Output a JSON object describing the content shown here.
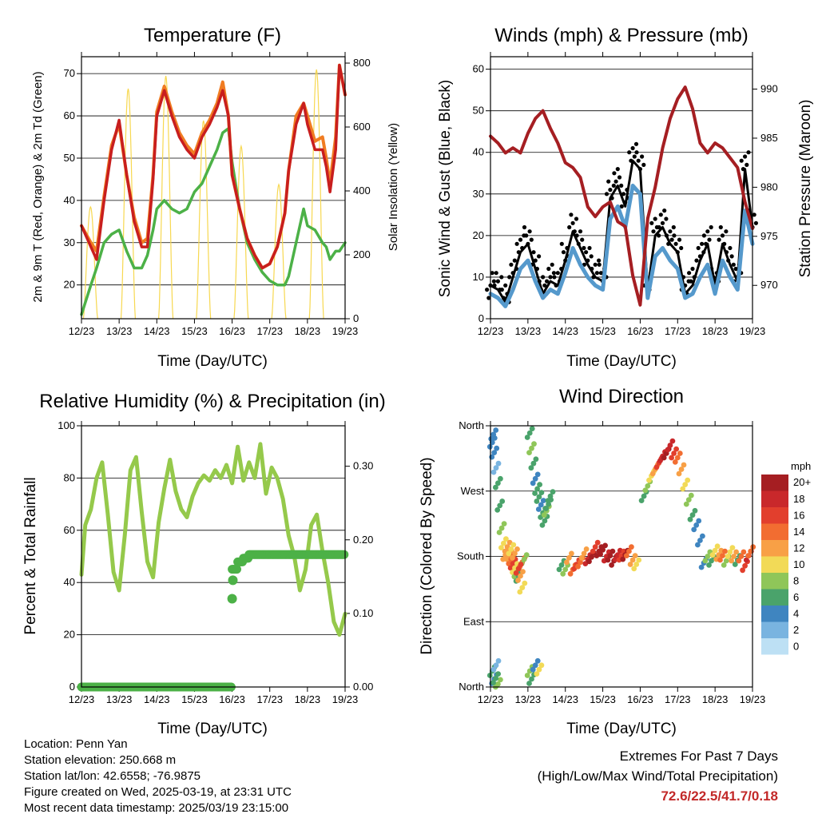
{
  "x_ticks": [
    "12/23",
    "13/23",
    "14/23",
    "15/23",
    "16/23",
    "17/23",
    "18/23",
    "19/23"
  ],
  "x_label": "Time (Day/UTC)",
  "colors": {
    "temp2m": "#c81e1e",
    "temp9m": "#f07c22",
    "dewpoint": "#4cb147",
    "solar": "#f7d850",
    "wind": "#5599cc",
    "gust": "#000000",
    "pressure": "#a51e22",
    "rh": "#95c94b",
    "precip": "#4cb147",
    "extremes": "#c22828"
  },
  "info": {
    "location": "Location: Penn Yan",
    "elevation": "Station elevation: 250.668 m",
    "latlon": "Station lat/lon: 42.6558; -76.9875",
    "created": "Figure created on Wed, 2025-03-19, at 23:31 UTC",
    "recent": "Most recent data timestamp: 2025/03/19 23:15:00"
  },
  "extremes": {
    "line1": "Extremes For Past 7 Days",
    "line2": "(High/Low/Max Wind/Total Precipitation)",
    "values": "72.6/22.5/41.7/0.18"
  },
  "chart_data": [
    {
      "id": "temp",
      "type": "line",
      "title": "Temperature (F)",
      "xlabel": "Time (Day/UTC)",
      "ylabel": "2m & 9m T (Red, Orange) & 2m Td (Green)",
      "ylabel_right": "Solar Insolation (Yellow)",
      "x_range": [
        0,
        7
      ],
      "ylim": [
        12,
        74
      ],
      "yticks": [
        20,
        30,
        40,
        50,
        60,
        70
      ],
      "ylim_right": [
        0,
        820
      ],
      "yticks_right": [
        0,
        200,
        400,
        600,
        800
      ],
      "x": [
        0,
        0.25,
        0.4,
        0.6,
        0.8,
        1,
        1.2,
        1.4,
        1.6,
        1.75,
        1.9,
        2,
        2.2,
        2.4,
        2.6,
        2.8,
        3,
        3.2,
        3.4,
        3.6,
        3.75,
        3.9,
        4,
        4.2,
        4.4,
        4.6,
        4.8,
        5,
        5.2,
        5.4,
        5.5,
        5.7,
        5.9,
        6,
        6.2,
        6.4,
        6.5,
        6.6,
        6.75,
        6.85,
        7
      ],
      "series": [
        {
          "name": "2m T",
          "values": [
            34,
            29,
            26,
            40,
            52,
            59,
            46,
            35,
            29,
            29,
            45,
            60,
            66,
            60,
            55,
            52,
            50,
            55,
            58,
            62,
            66,
            60,
            46,
            38,
            31,
            27,
            24,
            25,
            29,
            37,
            47,
            58,
            63,
            58,
            52,
            52,
            48,
            42,
            52,
            72,
            65
          ]
        },
        {
          "name": "9m T",
          "values": [
            34,
            30,
            28,
            41,
            53,
            58,
            46,
            36,
            30,
            31,
            46,
            61,
            67,
            61,
            56,
            53,
            51,
            56,
            59,
            63,
            68,
            60,
            46,
            38,
            31,
            27,
            24,
            25,
            29,
            37,
            47,
            60,
            63,
            60,
            54,
            55,
            50,
            44,
            55,
            72,
            65
          ]
        },
        {
          "name": "2m Td",
          "values": [
            13,
            20,
            24,
            30,
            32,
            33,
            28,
            24,
            24,
            27,
            33,
            38,
            40,
            38,
            37,
            38,
            42,
            44,
            48,
            52,
            56,
            57,
            49,
            38,
            30,
            26,
            23,
            21,
            20,
            20,
            22,
            30,
            38,
            34,
            33,
            30,
            29,
            26,
            28,
            28,
            30
          ]
        }
      ],
      "solar": {
        "days": [
          0.05,
          1.05,
          2.05,
          3.05,
          4.05,
          5.05,
          6.05
        ],
        "peaks": [
          350,
          720,
          760,
          620,
          540,
          420,
          780
        ]
      }
    },
    {
      "id": "wind",
      "type": "line",
      "title": "Winds (mph) & Pressure (mb)",
      "xlabel": "Time (Day/UTC)",
      "ylabel": "Sonic Wind & Gust (Blue, Black)",
      "ylabel_right": "Station Pressure (Maroon)",
      "x_range": [
        0,
        7
      ],
      "ylim": [
        0,
        63
      ],
      "yticks": [
        0,
        10,
        20,
        30,
        40,
        50,
        60
      ],
      "ylim_right": [
        966.6,
        993.3
      ],
      "yticks_right": [
        970,
        975,
        980,
        985,
        990
      ],
      "x": [
        0,
        0.2,
        0.4,
        0.6,
        0.8,
        1,
        1.2,
        1.4,
        1.6,
        1.8,
        2,
        2.2,
        2.4,
        2.6,
        2.8,
        3,
        3.2,
        3.4,
        3.6,
        3.8,
        4,
        4.2,
        4.4,
        4.6,
        4.8,
        5,
        5.2,
        5.4,
        5.6,
        5.8,
        6,
        6.2,
        6.4,
        6.6,
        6.8,
        7
      ],
      "series": [
        {
          "name": "Sonic Wind",
          "values": [
            6,
            5,
            3,
            7,
            12,
            14,
            9,
            5,
            7,
            6,
            11,
            17,
            13,
            10,
            8,
            7,
            24,
            27,
            22,
            32,
            30,
            5,
            15,
            17,
            14,
            12,
            5,
            6,
            10,
            13,
            6,
            14,
            10,
            7,
            26,
            18
          ]
        },
        {
          "name": "Gust",
          "values": [
            10,
            9,
            6,
            12,
            18,
            20,
            14,
            8,
            11,
            10,
            16,
            23,
            19,
            15,
            12,
            11,
            31,
            34,
            29,
            40,
            38,
            9,
            22,
            24,
            20,
            18,
            8,
            10,
            16,
            20,
            10,
            20,
            15,
            11,
            38,
            24
          ]
        },
        {
          "name": "Station Pressure",
          "values": [
            985.2,
            984.5,
            983.5,
            984,
            983.5,
            985.5,
            987,
            987.8,
            986,
            984.5,
            982.5,
            982,
            981,
            978,
            977,
            978,
            978.5,
            976.5,
            976,
            971,
            968,
            976.8,
            980,
            984,
            987,
            989,
            990.2,
            988,
            984.5,
            983.5,
            984.5,
            984,
            983,
            982,
            978.5,
            975.8
          ]
        }
      ]
    },
    {
      "id": "rh",
      "type": "line",
      "title": "Relative Humidity (%) & Precipitation (in)",
      "xlabel": "Time (Day/UTC)",
      "ylabel": "Percent & Total Rainfall",
      "x_range": [
        0,
        7
      ],
      "ylim": [
        0,
        100
      ],
      "yticks": [
        0,
        20,
        40,
        60,
        80,
        100
      ],
      "ylim_right": [
        0,
        0.355
      ],
      "yticks_right": [
        0,
        0.1,
        0.2,
        0.3
      ],
      "yticks_right_labels": [
        "0.00",
        "0.10",
        "0.20",
        "0.30"
      ],
      "x": [
        0,
        0.1,
        0.25,
        0.4,
        0.55,
        0.7,
        0.85,
        1,
        1.15,
        1.3,
        1.45,
        1.6,
        1.75,
        1.9,
        2.05,
        2.2,
        2.35,
        2.5,
        2.65,
        2.8,
        2.95,
        3.1,
        3.25,
        3.4,
        3.55,
        3.7,
        3.85,
        4,
        4.15,
        4.3,
        4.45,
        4.6,
        4.75,
        4.9,
        5.05,
        5.2,
        5.35,
        5.5,
        5.65,
        5.8,
        5.95,
        6.1,
        6.25,
        6.4,
        6.55,
        6.7,
        6.85,
        7
      ],
      "series": [
        {
          "name": "Relative Humidity",
          "values": [
            43,
            62,
            68,
            80,
            86,
            66,
            44,
            37,
            58,
            83,
            88,
            67,
            48,
            42,
            63,
            76,
            87,
            75,
            68,
            65,
            73,
            78,
            81,
            79,
            83,
            80,
            85,
            78,
            92,
            79,
            86,
            80,
            93,
            74,
            84,
            80,
            72,
            58,
            50,
            37,
            45,
            62,
            66,
            52,
            40,
            25,
            20,
            28
          ]
        },
        {
          "name": "Total Precipitation",
          "values": [
            0,
            0,
            0,
            0,
            0,
            0,
            0,
            0,
            0,
            0,
            0,
            0,
            0,
            0,
            0,
            0,
            0,
            0,
            0,
            0,
            0,
            0,
            0,
            0,
            0,
            0,
            0,
            0.16,
            0.17,
            0.175,
            0.18,
            0.18,
            0.18,
            0.18,
            0.18,
            0.18,
            0.18,
            0.18,
            0.18,
            0.18,
            0.18,
            0.18,
            0.18,
            0.18,
            0.18,
            0.18,
            0.18,
            0.18
          ]
        }
      ]
    },
    {
      "id": "wdir",
      "type": "scatter",
      "title": "Wind Direction",
      "xlabel": "Time (Day/UTC)",
      "ylabel": "Direction (Colored By Speed)",
      "x_range": [
        0,
        7
      ],
      "ylim": [
        0,
        360
      ],
      "yticks": [
        0,
        90,
        180,
        270,
        360
      ],
      "yticks_labels": [
        "North",
        "East",
        "South",
        "West",
        "North"
      ],
      "legend_title": "mph",
      "legend_labels": [
        "20+",
        "18",
        "16",
        "14",
        "12",
        "10",
        "8",
        "6",
        "4",
        "2",
        "0"
      ],
      "legend_colors": [
        "#a51e22",
        "#c9282b",
        "#e23f2d",
        "#f26d31",
        "#f8a046",
        "#f2da57",
        "#8fc659",
        "#4aa36b",
        "#3f85c0",
        "#79b4e0",
        "#bde0f4"
      ],
      "points": [
        {
          "t": [
            0.05,
            0.1,
            0.15,
            0.2,
            0.25,
            0.3,
            0.35,
            0.4,
            0.45,
            0.05,
            0.1,
            0.15,
            0.2,
            0.08,
            0.14
          ],
          "d": [
            340,
            320,
            300,
            280,
            250,
            220,
            200,
            185,
            190,
            20,
            10,
            30,
            5,
            350,
            15
          ],
          "s": [
            3,
            4,
            2,
            5,
            6,
            8,
            10,
            12,
            11,
            6,
            4,
            2,
            8,
            3,
            5
          ]
        },
        {
          "t": [
            0.5,
            0.55,
            0.6,
            0.65,
            0.7,
            0.75,
            0.8,
            0.85,
            0.9,
            0.55,
            0.65,
            0.75,
            0.85
          ],
          "d": [
            180,
            175,
            170,
            165,
            160,
            155,
            150,
            170,
            175,
            190,
            185,
            165,
            140
          ],
          "s": [
            12,
            14,
            16,
            10,
            8,
            6,
            12,
            14,
            8,
            10,
            12,
            15,
            9
          ]
        },
        {
          "t": [
            1.05,
            1.1,
            1.15,
            1.2,
            1.25,
            1.3,
            1.35,
            1.4,
            1.45,
            1.5,
            1.55,
            1.6,
            1.05,
            1.1,
            1.2,
            1.3
          ],
          "d": [
            350,
            330,
            310,
            290,
            270,
            260,
            250,
            240,
            230,
            245,
            255,
            260,
            20,
            10,
            30,
            25
          ],
          "s": [
            6,
            8,
            6,
            4,
            5,
            6,
            4,
            6,
            5,
            7,
            6,
            5,
            8,
            6,
            4,
            9
          ]
        },
        {
          "t": [
            1.9,
            2.0,
            2.1,
            2.2,
            2.3,
            2.4,
            2.5,
            2.6,
            2.7,
            2.8,
            2.9,
            3.0,
            3.1,
            3.2,
            3.3,
            3.4,
            3.5,
            3.6,
            3.7,
            3.8,
            3.9
          ],
          "d": [
            170,
            165,
            175,
            160,
            168,
            172,
            185,
            178,
            182,
            190,
            185,
            188,
            180,
            182,
            176,
            185,
            178,
            180,
            186,
            175,
            170
          ],
          "s": [
            6,
            8,
            12,
            14,
            16,
            14,
            12,
            18,
            20,
            16,
            22,
            20,
            18,
            22,
            20,
            18,
            16,
            20,
            14,
            12,
            10
          ]
        },
        {
          "t": [
            4.1,
            4.2,
            4.3,
            4.4,
            4.5,
            4.6,
            4.7,
            4.8,
            4.9,
            5.0,
            5.1,
            5.2,
            5.3,
            5.4,
            5.5,
            5.6
          ],
          "d": [
            260,
            275,
            290,
            300,
            310,
            320,
            325,
            330,
            320,
            315,
            300,
            280,
            260,
            240,
            220,
            200
          ],
          "s": [
            6,
            8,
            10,
            12,
            16,
            18,
            20,
            18,
            16,
            14,
            12,
            10,
            8,
            6,
            4,
            3
          ]
        },
        {
          "t": [
            5.7,
            5.8,
            5.9,
            6.0,
            6.1,
            6.2,
            6.3,
            6.4,
            6.5,
            6.6,
            6.7,
            6.8,
            6.9,
            6.95
          ],
          "d": [
            170,
            180,
            175,
            190,
            185,
            178,
            172,
            185,
            180,
            176,
            182,
            170,
            178,
            185
          ],
          "s": [
            4,
            8,
            6,
            10,
            12,
            14,
            8,
            10,
            12,
            6,
            14,
            16,
            18,
            14
          ]
        }
      ]
    }
  ]
}
